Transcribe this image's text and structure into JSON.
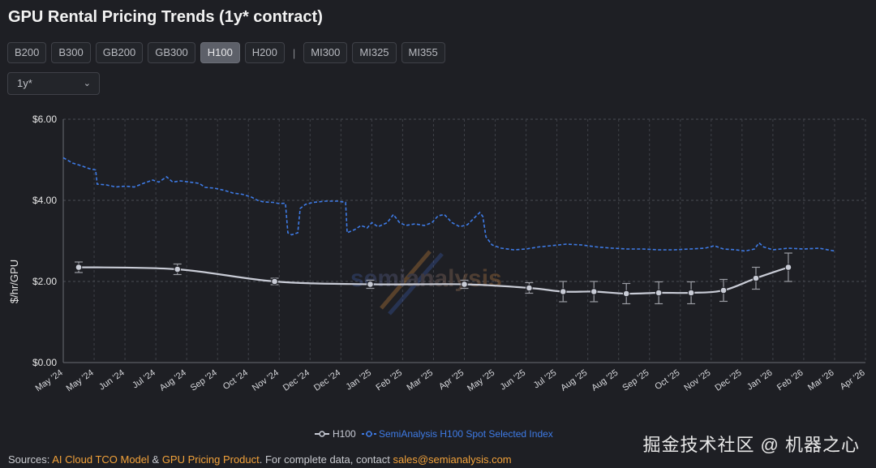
{
  "title": "GPU Rental Pricing Trends (1y* contract)",
  "tabs_left": [
    "B200",
    "B300",
    "GB200",
    "GB300",
    "H100",
    "H200"
  ],
  "tabs_sep": "|",
  "tabs_right": [
    "MI300",
    "MI325",
    "MI355"
  ],
  "active_tab": "H100",
  "contract_select": {
    "value": "1y*"
  },
  "sources": {
    "prefix": "Sources: ",
    "link1": "AI Cloud TCO Model",
    "amp": " & ",
    "link2": "GPU Pricing Product",
    "middle": ". For complete data, contact ",
    "email": "sales@semianalysis.com"
  },
  "watermark_text": "掘金技术社区 @ 机器之心",
  "chart_data": {
    "type": "line",
    "ylabel": "$/hr/GPU",
    "ylim": [
      0,
      6.0
    ],
    "yticks": [
      "$0.00",
      "$2.00",
      "$4.00",
      "$6.00"
    ],
    "ytick_values": [
      0,
      2,
      4,
      6
    ],
    "xticks": [
      "May '24",
      "May '24",
      "Jun '24",
      "Jul '24",
      "Aug '24",
      "Sep '24",
      "Oct '24",
      "Nov '24",
      "Dec '24",
      "Dec '24",
      "Jan '25",
      "Feb '25",
      "Mar '25",
      "Apr '25",
      "May '25",
      "Jun '25",
      "Jul '25",
      "Aug '25",
      "Aug '25",
      "Sep '25",
      "Oct '25",
      "Nov '25",
      "Dec '25",
      "Jan '26",
      "Feb '26",
      "Mar '26",
      "Apr '26"
    ],
    "grid": true,
    "legend_position": "bottom-center",
    "series": [
      {
        "name": "H100",
        "color": "#c9ccd6",
        "style": "solid",
        "points": [
          {
            "t": 0.5,
            "y": 2.35,
            "err": 0.13
          },
          {
            "t": 3.7,
            "y": 2.3,
            "err": 0.13
          },
          {
            "t": 6.85,
            "y": 2.0,
            "err": 0.08
          },
          {
            "t": 9.95,
            "y": 1.93,
            "err": 0.1
          },
          {
            "t": 13.0,
            "y": 1.93,
            "err": 0.1
          },
          {
            "t": 15.1,
            "y": 1.84,
            "err": 0.13
          },
          {
            "t": 16.2,
            "y": 1.75,
            "err": 0.25
          },
          {
            "t": 17.2,
            "y": 1.75,
            "err": 0.25
          },
          {
            "t": 18.25,
            "y": 1.7,
            "err": 0.25
          },
          {
            "t": 19.3,
            "y": 1.72,
            "err": 0.27
          },
          {
            "t": 20.35,
            "y": 1.72,
            "err": 0.27
          },
          {
            "t": 21.4,
            "y": 1.78,
            "err": 0.27
          },
          {
            "t": 22.45,
            "y": 2.08,
            "err": 0.27
          },
          {
            "t": 23.5,
            "y": 2.35,
            "err": 0.35
          }
        ]
      },
      {
        "name": "SemiAnalysis H100 Spot Selected Index",
        "color": "#3e7be6",
        "style": "dashed",
        "points": [
          {
            "t": 0.0,
            "y": 5.05
          },
          {
            "t": 0.3,
            "y": 4.92
          },
          {
            "t": 0.6,
            "y": 4.85
          },
          {
            "t": 0.85,
            "y": 4.78
          },
          {
            "t": 1.05,
            "y": 4.75
          },
          {
            "t": 1.1,
            "y": 4.4
          },
          {
            "t": 1.4,
            "y": 4.38
          },
          {
            "t": 1.7,
            "y": 4.33
          },
          {
            "t": 2.0,
            "y": 4.35
          },
          {
            "t": 2.3,
            "y": 4.33
          },
          {
            "t": 2.6,
            "y": 4.42
          },
          {
            "t": 2.9,
            "y": 4.5
          },
          {
            "t": 3.1,
            "y": 4.45
          },
          {
            "t": 3.35,
            "y": 4.58
          },
          {
            "t": 3.55,
            "y": 4.45
          },
          {
            "t": 3.8,
            "y": 4.48
          },
          {
            "t": 4.1,
            "y": 4.45
          },
          {
            "t": 4.4,
            "y": 4.42
          },
          {
            "t": 4.6,
            "y": 4.32
          },
          {
            "t": 4.9,
            "y": 4.3
          },
          {
            "t": 5.2,
            "y": 4.25
          },
          {
            "t": 5.5,
            "y": 4.18
          },
          {
            "t": 5.8,
            "y": 4.15
          },
          {
            "t": 6.1,
            "y": 4.08
          },
          {
            "t": 6.3,
            "y": 4.0
          },
          {
            "t": 6.5,
            "y": 3.96
          },
          {
            "t": 6.8,
            "y": 3.95
          },
          {
            "t": 7.0,
            "y": 3.92
          },
          {
            "t": 7.2,
            "y": 3.93
          },
          {
            "t": 7.28,
            "y": 3.2
          },
          {
            "t": 7.4,
            "y": 3.15
          },
          {
            "t": 7.6,
            "y": 3.2
          },
          {
            "t": 7.68,
            "y": 3.8
          },
          {
            "t": 7.85,
            "y": 3.9
          },
          {
            "t": 8.1,
            "y": 3.95
          },
          {
            "t": 8.5,
            "y": 3.98
          },
          {
            "t": 8.9,
            "y": 3.98
          },
          {
            "t": 9.15,
            "y": 3.95
          },
          {
            "t": 9.2,
            "y": 3.2
          },
          {
            "t": 9.45,
            "y": 3.28
          },
          {
            "t": 9.65,
            "y": 3.38
          },
          {
            "t": 9.85,
            "y": 3.32
          },
          {
            "t": 10.0,
            "y": 3.45
          },
          {
            "t": 10.2,
            "y": 3.35
          },
          {
            "t": 10.5,
            "y": 3.45
          },
          {
            "t": 10.7,
            "y": 3.65
          },
          {
            "t": 10.9,
            "y": 3.45
          },
          {
            "t": 11.1,
            "y": 3.38
          },
          {
            "t": 11.4,
            "y": 3.42
          },
          {
            "t": 11.7,
            "y": 3.38
          },
          {
            "t": 11.95,
            "y": 3.45
          },
          {
            "t": 12.15,
            "y": 3.62
          },
          {
            "t": 12.35,
            "y": 3.65
          },
          {
            "t": 12.6,
            "y": 3.45
          },
          {
            "t": 12.85,
            "y": 3.35
          },
          {
            "t": 13.1,
            "y": 3.4
          },
          {
            "t": 13.3,
            "y": 3.55
          },
          {
            "t": 13.5,
            "y": 3.7
          },
          {
            "t": 13.6,
            "y": 3.6
          },
          {
            "t": 13.7,
            "y": 3.1
          },
          {
            "t": 13.9,
            "y": 2.9
          },
          {
            "t": 14.2,
            "y": 2.82
          },
          {
            "t": 14.6,
            "y": 2.78
          },
          {
            "t": 15.0,
            "y": 2.8
          },
          {
            "t": 15.4,
            "y": 2.85
          },
          {
            "t": 15.8,
            "y": 2.88
          },
          {
            "t": 16.3,
            "y": 2.92
          },
          {
            "t": 16.8,
            "y": 2.9
          },
          {
            "t": 17.3,
            "y": 2.85
          },
          {
            "t": 17.8,
            "y": 2.82
          },
          {
            "t": 18.3,
            "y": 2.8
          },
          {
            "t": 18.8,
            "y": 2.8
          },
          {
            "t": 19.3,
            "y": 2.78
          },
          {
            "t": 19.8,
            "y": 2.78
          },
          {
            "t": 20.3,
            "y": 2.8
          },
          {
            "t": 20.8,
            "y": 2.82
          },
          {
            "t": 21.1,
            "y": 2.88
          },
          {
            "t": 21.4,
            "y": 2.8
          },
          {
            "t": 21.8,
            "y": 2.78
          },
          {
            "t": 22.1,
            "y": 2.75
          },
          {
            "t": 22.4,
            "y": 2.8
          },
          {
            "t": 22.55,
            "y": 2.95
          },
          {
            "t": 22.7,
            "y": 2.85
          },
          {
            "t": 23.0,
            "y": 2.78
          },
          {
            "t": 23.5,
            "y": 2.82
          },
          {
            "t": 24.0,
            "y": 2.8
          },
          {
            "t": 24.5,
            "y": 2.82
          },
          {
            "t": 25.0,
            "y": 2.75
          }
        ]
      }
    ]
  }
}
